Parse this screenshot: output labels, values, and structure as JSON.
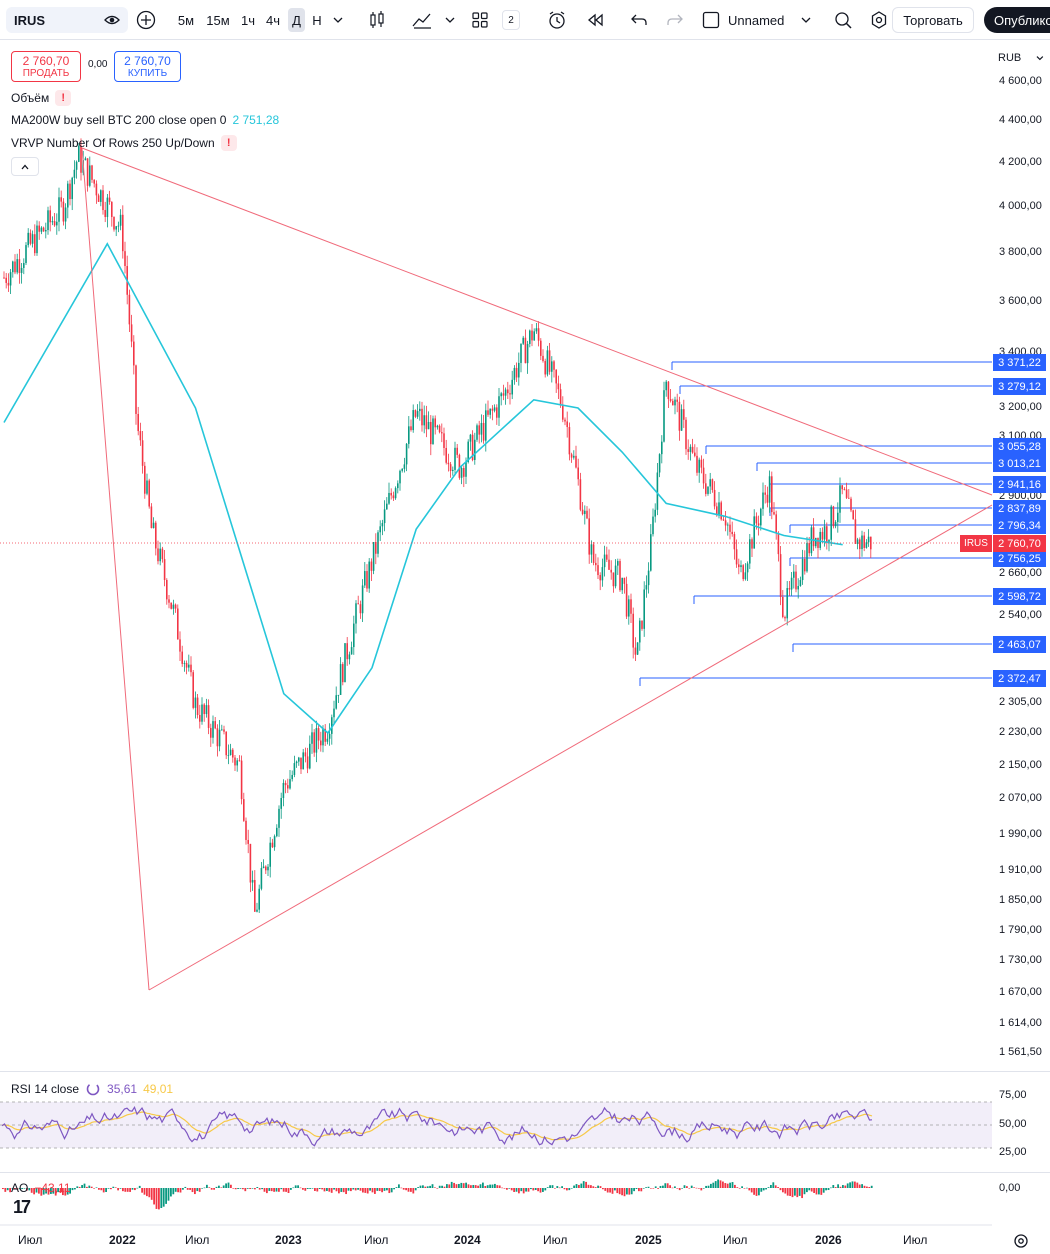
{
  "toolbar": {
    "symbol": "IRUS",
    "intervals": [
      "5м",
      "15м",
      "1ч",
      "4ч",
      "Д",
      "Н"
    ],
    "active_interval": "Д",
    "layouts_count": "2",
    "layout_name": "Unnamed",
    "trade_label": "Торговать",
    "publish_label": "Опублико"
  },
  "legend": {
    "sell_price": "2 760,70",
    "sell_label": "ПРОДАТЬ",
    "spread": "0,00",
    "buy_price": "2 760,70",
    "buy_label": "КУПИТЬ",
    "indicators": [
      {
        "name": "Объём",
        "value": ""
      },
      {
        "name": "MA200W buy sell BTC 200 close open 0",
        "value": "2 751,28"
      },
      {
        "name": "VRVP Number Of Rows 250 Up/Down",
        "value": ""
      }
    ]
  },
  "price_axis": {
    "currency": "RUB",
    "ticks": [
      "4 600,00",
      "4 400,00",
      "4 200,00",
      "4 000,00",
      "3 800,00",
      "3 600,00",
      "3 400,00",
      "3 200,00",
      "3 100,00",
      "2 900,00",
      "2 660,00",
      "2 540,00",
      "2 372,47",
      "2 305,00",
      "2 230,00",
      "2 150,00",
      "2 070,00",
      "1 990,00",
      "1 910,00",
      "1 850,00",
      "1 790,00",
      "1 730,00",
      "1 670,00",
      "1 614,00",
      "1 561,50"
    ],
    "levels": [
      "3 371,22",
      "3 279,12",
      "3 055,28",
      "3 013,21",
      "2 941,16",
      "2 837,89",
      "2 796,34",
      "2 756,25",
      "2 598,72",
      "2 463,07",
      "2 372,47"
    ],
    "current_symbol": "IRUS",
    "current_price": "2 760,70"
  },
  "rsi": {
    "label": "RSI 14 close",
    "value1": "35,61",
    "value2": "49,01",
    "ticks": [
      "75,00",
      "50,00",
      "25,00"
    ]
  },
  "ao": {
    "label": "AO",
    "value": "−43,11",
    "tick": "0,00"
  },
  "time_axis": [
    "Июл",
    "2022",
    "Июл",
    "2023",
    "Июл",
    "2024",
    "Июл",
    "2025",
    "Июл",
    "2026",
    "Июл"
  ],
  "colors": {
    "up": "#089981",
    "down": "#f23645",
    "ma": "#26c6da",
    "triangle": "#f06a7a",
    "level": "#2962ff",
    "rsi": "#7e57c2",
    "rsi_ma": "#f7c948"
  },
  "chart_data": {
    "type": "line",
    "title": "IRUS",
    "period": "D",
    "series": [
      {
        "name": "IRUS",
        "x": [
          "2021-06",
          "2021-09",
          "2021-10",
          "2022-01",
          "2022-02",
          "2022-03",
          "2022-06",
          "2022-09",
          "2022-10",
          "2022-12",
          "2023-03",
          "2023-06",
          "2023-09",
          "2023-12",
          "2024-03",
          "2024-05",
          "2024-07",
          "2024-09",
          "2024-11",
          "2024-12",
          "2025-01",
          "2025-02",
          "2025-04",
          "2025-06",
          "2025-07",
          "2025-09",
          "2025-10",
          "2025-12",
          "2026-01",
          "2026-02",
          "2026-03"
        ],
        "values": [
          3700,
          4000,
          4230,
          3900,
          3150,
          2800,
          2300,
          2150,
          1820,
          2100,
          2250,
          2700,
          3180,
          3000,
          3250,
          3490,
          3200,
          2700,
          2650,
          2420,
          2760,
          3300,
          3000,
          2850,
          2650,
          2950,
          2550,
          2780,
          2800,
          2910,
          2760
        ]
      },
      {
        "name": "MA200W",
        "x": [
          "2021-06",
          "2021-12",
          "2022-06",
          "2022-12",
          "2023-03",
          "2023-06",
          "2023-09",
          "2023-12",
          "2024-05",
          "2024-08",
          "2024-11",
          "2025-02",
          "2025-06",
          "2025-10",
          "2026-02"
        ],
        "values": [
          3150,
          3840,
          3200,
          2330,
          2230,
          2400,
          2800,
          3000,
          3230,
          3200,
          3050,
          2880,
          2840,
          2780,
          2751.28
        ]
      }
    ],
    "ylim": [
      1530,
      4650
    ],
    "current": 2760.7
  }
}
